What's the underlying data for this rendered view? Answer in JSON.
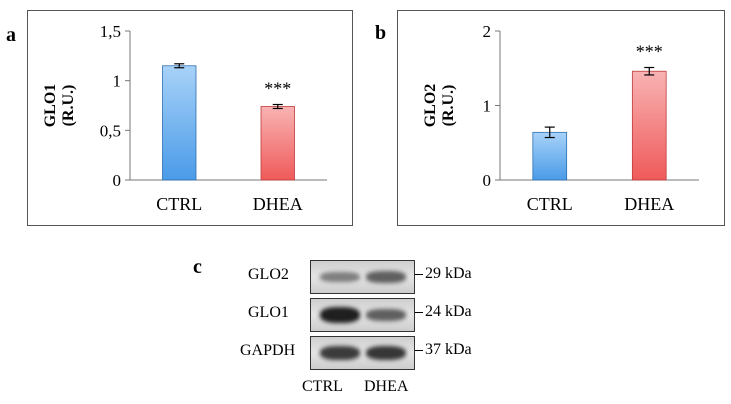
{
  "chart_data": [
    {
      "panel": "a",
      "type": "bar",
      "categories": [
        "CTRL",
        "DHEA"
      ],
      "values": [
        1.15,
        0.74
      ],
      "errors": [
        0.02,
        0.02
      ],
      "annotations": [
        "",
        "***"
      ],
      "ylabel": "GLO1 (R.U.)",
      "ylabel_lines": [
        "GLO1",
        "(R.U.)"
      ],
      "ylim": [
        0,
        1.5
      ],
      "yticks": [
        0,
        0.5,
        1,
        1.5
      ],
      "yticklabels": [
        "0",
        "0,5",
        "1",
        "1,5"
      ],
      "bar_colors": [
        "#4a9be8",
        "#ef5a5a"
      ],
      "grid": false
    },
    {
      "panel": "b",
      "type": "bar",
      "categories": [
        "CTRL",
        "DHEA"
      ],
      "values": [
        0.64,
        1.46
      ],
      "errors": [
        0.07,
        0.05
      ],
      "annotations": [
        "",
        "***"
      ],
      "ylabel": "GLO2 (R.U.)",
      "ylabel_lines": [
        "GLO2",
        "(R.U.)"
      ],
      "ylim": [
        0,
        2
      ],
      "yticks": [
        0,
        1,
        2
      ],
      "yticklabels": [
        "0",
        "1",
        "2"
      ],
      "bar_colors": [
        "#4a9be8",
        "#ef5a5a"
      ],
      "grid": false
    }
  ],
  "blot": {
    "panel": "c",
    "rows": [
      {
        "label": "GLO2",
        "size": "29 kDa",
        "band_strength": [
          0.35,
          0.55
        ]
      },
      {
        "label": "GLO1",
        "size": "24 kDa",
        "band_strength": [
          1.0,
          0.55
        ]
      },
      {
        "label": "GAPDH",
        "size": "37 kDa",
        "band_strength": [
          0.8,
          0.85
        ]
      }
    ],
    "lanes": [
      "CTRL",
      "DHEA"
    ]
  }
}
